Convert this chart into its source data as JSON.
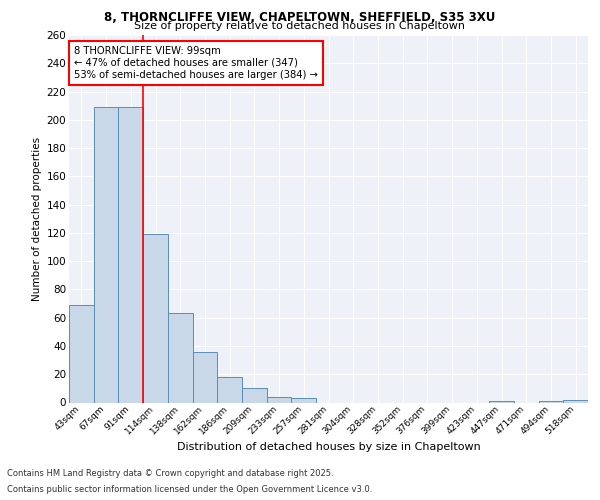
{
  "title_line1": "8, THORNCLIFFE VIEW, CHAPELTOWN, SHEFFIELD, S35 3XU",
  "title_line2": "Size of property relative to detached houses in Chapeltown",
  "xlabel": "Distribution of detached houses by size in Chapeltown",
  "ylabel": "Number of detached properties",
  "bin_labels": [
    "43sqm",
    "67sqm",
    "91sqm",
    "114sqm",
    "138sqm",
    "162sqm",
    "186sqm",
    "209sqm",
    "233sqm",
    "257sqm",
    "281sqm",
    "304sqm",
    "328sqm",
    "352sqm",
    "376sqm",
    "399sqm",
    "423sqm",
    "447sqm",
    "471sqm",
    "494sqm",
    "518sqm"
  ],
  "bar_values": [
    69,
    209,
    209,
    119,
    63,
    36,
    18,
    10,
    4,
    3,
    0,
    0,
    0,
    0,
    0,
    0,
    0,
    1,
    0,
    1,
    2
  ],
  "bar_color": "#c8d8e8",
  "bar_edge_color": "#5b8db8",
  "red_line_x": 2.5,
  "annotation_text": "8 THORNCLIFFE VIEW: 99sqm\n← 47% of detached houses are smaller (347)\n53% of semi-detached houses are larger (384) →",
  "annotation_box_color": "white",
  "annotation_box_edge": "red",
  "footer_line1": "Contains HM Land Registry data © Crown copyright and database right 2025.",
  "footer_line2": "Contains public sector information licensed under the Open Government Licence v3.0.",
  "background_color": "#eef2f8",
  "ylim": [
    0,
    260
  ],
  "yticks": [
    0,
    20,
    40,
    60,
    80,
    100,
    120,
    140,
    160,
    180,
    200,
    220,
    240,
    260
  ]
}
